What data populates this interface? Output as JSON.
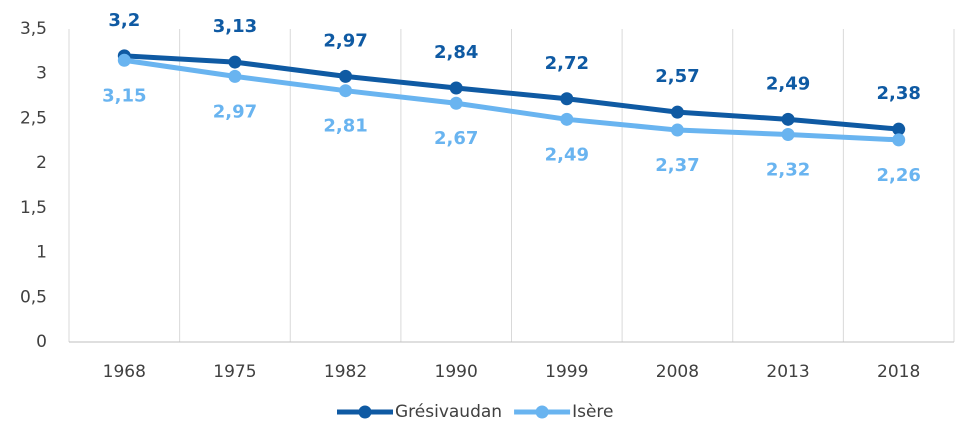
{
  "chart_data": {
    "type": "line",
    "categories": [
      "1968",
      "1975",
      "1982",
      "1990",
      "1999",
      "2008",
      "2013",
      "2018"
    ],
    "series": [
      {
        "name": "Grésivaudan",
        "color": "#0f5aa3",
        "values": [
          3.2,
          3.13,
          2.97,
          2.84,
          2.72,
          2.57,
          2.49,
          2.38
        ],
        "value_labels": [
          "3,2",
          "3,13",
          "2,97",
          "2,84",
          "2,72",
          "2,57",
          "2,49",
          "2,38"
        ]
      },
      {
        "name": "Isère",
        "color": "#69b4f0",
        "values": [
          3.15,
          2.97,
          2.81,
          2.67,
          2.49,
          2.37,
          2.32,
          2.26
        ],
        "value_labels": [
          "3,15",
          "2,97",
          "2,81",
          "2,67",
          "2,49",
          "2,37",
          "2,32",
          "2,26"
        ]
      }
    ],
    "ylim": [
      0,
      3.5
    ],
    "yticks": [
      0,
      {
        "value": 0.5,
        "label": "0,5"
      },
      1,
      {
        "value": 1.5,
        "label": "1,5"
      },
      2,
      {
        "value": 2.5,
        "label": "2,5"
      },
      3,
      {
        "value": 3.5,
        "label": "3,5"
      }
    ],
    "grid": false,
    "legend": "bottom"
  }
}
